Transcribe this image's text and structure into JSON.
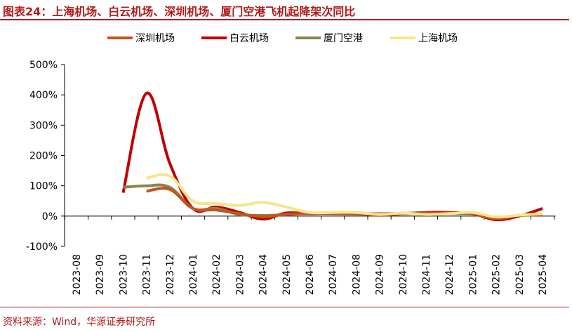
{
  "header": {
    "title": "图表24：上海机场、白云机场、深圳机场、厦门空港飞机起降架次同比"
  },
  "footer": {
    "source": "资料来源：Wind，华源证券研究所"
  },
  "chart_data": {
    "type": "line",
    "title": "",
    "xlabel": "",
    "ylabel": "",
    "ylim": [
      -100,
      500
    ],
    "yticks": [
      "-100%",
      "0%",
      "100%",
      "200%",
      "300%",
      "400%",
      "500%"
    ],
    "categories": [
      "2023-08",
      "2023-09",
      "2023-10",
      "2023-11",
      "2023-12",
      "2024-01",
      "2024-02",
      "2024-03",
      "2024-04",
      "2024-05",
      "2024-06",
      "2024-07",
      "2024-08",
      "2024-09",
      "2024-10",
      "2024-11",
      "2024-12",
      "2025-01",
      "2025-02",
      "2025-03",
      "2025-04"
    ],
    "legend_position": "top",
    "grid": false,
    "series": [
      {
        "name": "深圳机场",
        "color": "#c0561e",
        "values": [
          null,
          null,
          null,
          82,
          88,
          25,
          20,
          8,
          -2,
          6,
          8,
          8,
          7,
          6,
          8,
          9,
          10,
          8,
          -8,
          2,
          5
        ]
      },
      {
        "name": "白云机场",
        "color": "#c00000",
        "values": [
          null,
          null,
          77,
          405,
          175,
          25,
          30,
          12,
          -10,
          10,
          8,
          10,
          8,
          3,
          8,
          12,
          12,
          8,
          -12,
          0,
          25
        ]
      },
      {
        "name": "厦门空港",
        "color": "#8a8450",
        "values": [
          null,
          null,
          95,
          100,
          95,
          25,
          25,
          5,
          2,
          5,
          10,
          10,
          8,
          8,
          9,
          10,
          8,
          7,
          -5,
          2,
          5
        ]
      },
      {
        "name": "上海机场",
        "color": "#f5e68c",
        "values": [
          null,
          null,
          null,
          125,
          132,
          50,
          42,
          35,
          45,
          30,
          12,
          12,
          12,
          5,
          10,
          5,
          8,
          12,
          -3,
          3,
          8
        ]
      }
    ]
  }
}
